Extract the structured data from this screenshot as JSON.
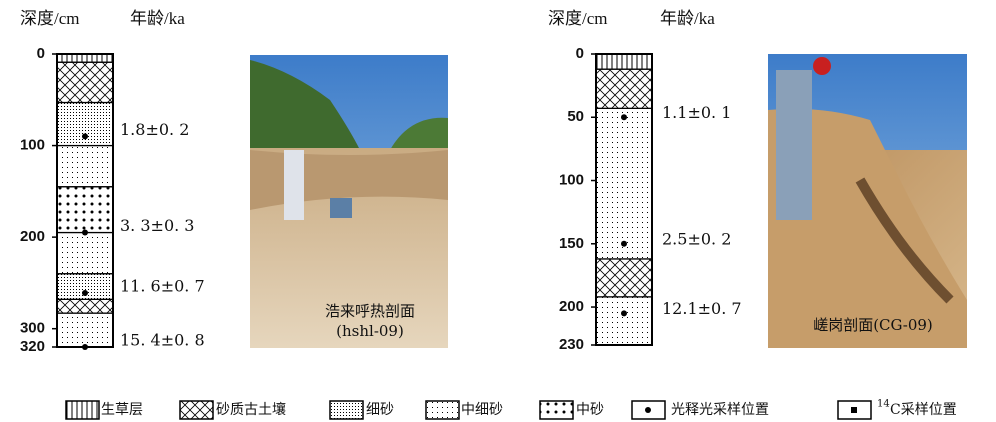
{
  "sections": [
    {
      "headers": {
        "depth": "深度/cm",
        "age": "年龄/ka"
      },
      "ylim": [
        0,
        320
      ],
      "yticks": [
        0,
        100,
        200,
        300,
        320
      ],
      "layers": [
        {
          "top": 0,
          "bottom": 9,
          "pattern": 0
        },
        {
          "top": 9,
          "bottom": 53,
          "pattern": 1
        },
        {
          "top": 53,
          "bottom": 100,
          "pattern": 2
        },
        {
          "top": 100,
          "bottom": 145,
          "pattern": 3
        },
        {
          "top": 145,
          "bottom": 195,
          "pattern": 4
        },
        {
          "top": 195,
          "bottom": 240,
          "pattern": 3
        },
        {
          "top": 240,
          "bottom": 268,
          "pattern": 2
        },
        {
          "top": 268,
          "bottom": 283,
          "pattern": 1
        },
        {
          "top": 283,
          "bottom": 320,
          "pattern": 3
        }
      ],
      "samples": [
        {
          "depth": 90,
          "age": "1.8±0. 2"
        },
        {
          "depth": 195,
          "age": "3. 3±0. 3"
        },
        {
          "depth": 261,
          "age": "11. 6±0. 7"
        },
        {
          "depth": 320,
          "age": "15. 4±0. 8"
        }
      ],
      "caption": [
        "浩来呼热剖面",
        "(hshl-09)"
      ]
    },
    {
      "headers": {
        "depth": "深度/cm",
        "age": "年龄/ka"
      },
      "ylim": [
        0,
        230
      ],
      "yticks": [
        0,
        50,
        100,
        150,
        200,
        230
      ],
      "layers": [
        {
          "top": 0,
          "bottom": 12,
          "pattern": 0
        },
        {
          "top": 12,
          "bottom": 43,
          "pattern": 1
        },
        {
          "top": 43,
          "bottom": 162,
          "pattern": 3
        },
        {
          "top": 162,
          "bottom": 192,
          "pattern": 1
        },
        {
          "top": 192,
          "bottom": 230,
          "pattern": 3
        }
      ],
      "samples": [
        {
          "depth": 50,
          "age": "1.1±0. 1"
        },
        {
          "depth": 150,
          "age": "2.5±0. 2"
        },
        {
          "depth": 205,
          "age": "12.1±0. 7"
        }
      ],
      "caption": [
        "嵯岗剖面(CG-09)"
      ]
    }
  ],
  "legend": [
    "生草层",
    "砂质古土壤",
    "细砂",
    "中细砂",
    "中砂",
    "光释光采样位置",
    {
      "sup": "14",
      "text": "C采样位置"
    }
  ]
}
